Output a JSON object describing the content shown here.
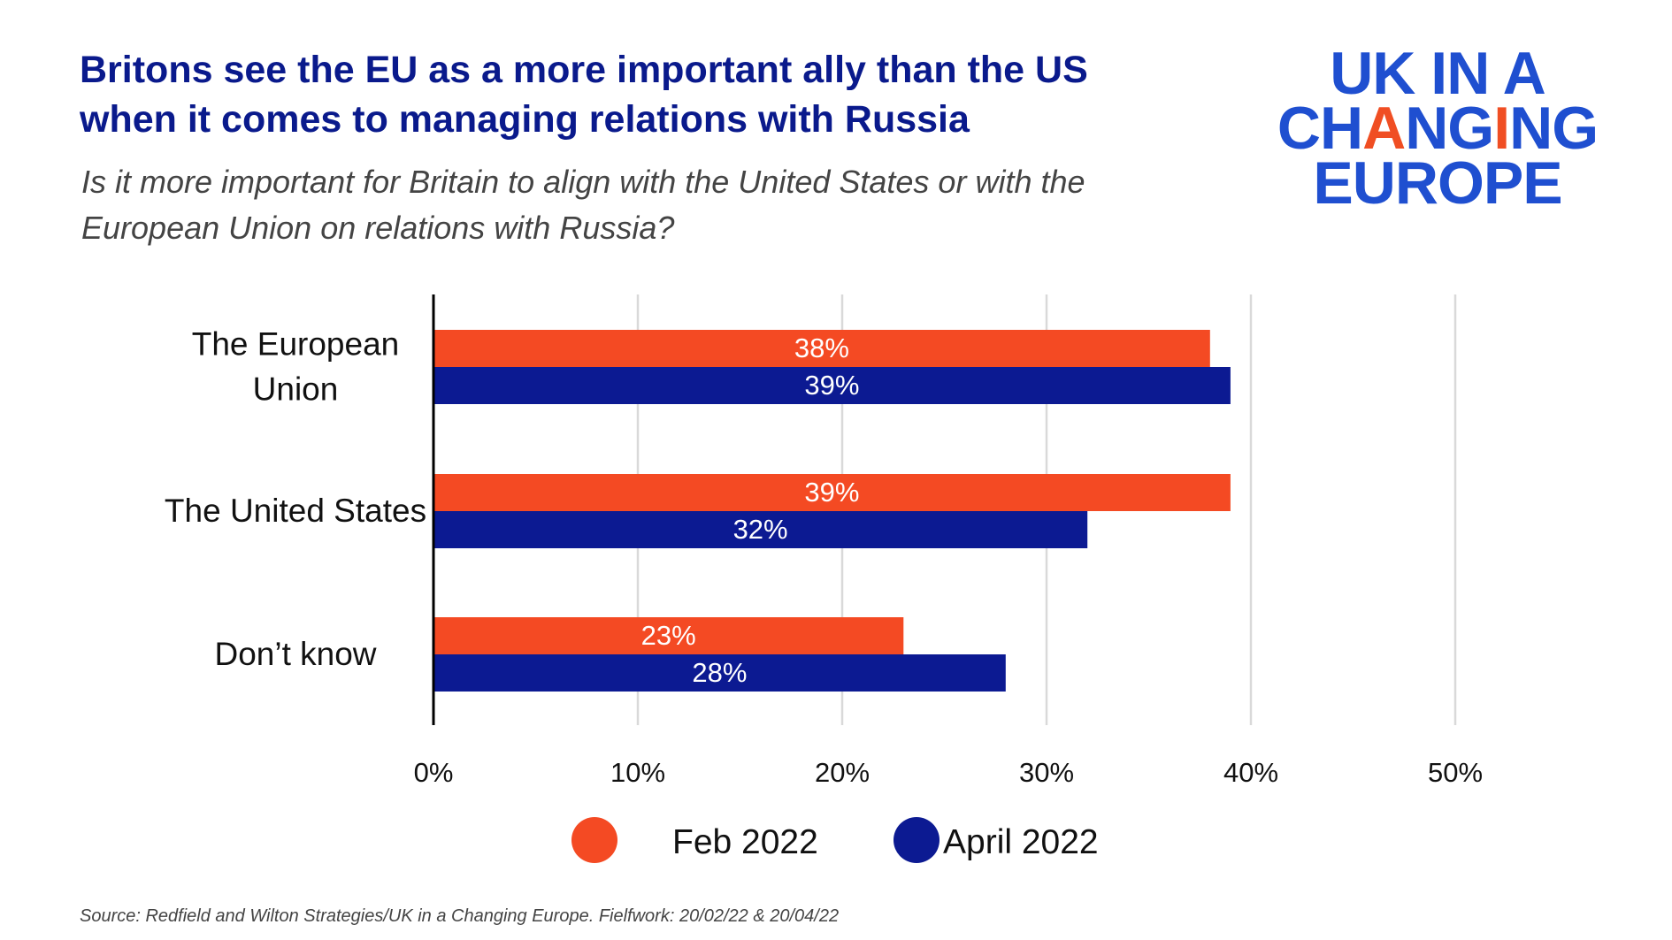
{
  "header": {
    "title": "Britons see the EU as a more important ally than the US\n when it comes to managing relations with Russia",
    "subtitle": "Is it more important for Britain to align with the United States or with the\nEuropean Union on relations with Russia?"
  },
  "logo": {
    "line1": "UK IN A",
    "line2_a": "CH",
    "line2_b": "A",
    "line2_c": "NG",
    "line2_d": "I",
    "line2_e": "NG",
    "line3": "EUROPE"
  },
  "colors": {
    "feb": "#f44a23",
    "april": "#0c1a92",
    "title": "#0a1a8c",
    "grid": "#d9d9d9",
    "axis": "#000000"
  },
  "chart_data": {
    "type": "bar",
    "orientation": "horizontal",
    "title": "Britons see the EU as a more important ally than the US when it comes to managing relations with Russia",
    "categories": [
      [
        "The European",
        "Union"
      ],
      [
        "The United States"
      ],
      [
        "Don’t know"
      ]
    ],
    "series": [
      {
        "name": "Feb 2022",
        "values": [
          38,
          39,
          23
        ],
        "labels": [
          "38%",
          "39%",
          "23%"
        ]
      },
      {
        "name": "April 2022",
        "values": [
          39,
          32,
          28
        ],
        "labels": [
          "39%",
          "32%",
          "28%"
        ]
      }
    ],
    "xlim": [
      0,
      50
    ],
    "ticks": [
      0,
      10,
      20,
      30,
      40,
      50
    ],
    "tick_labels": [
      "0%",
      "10%",
      "20%",
      "30%",
      "40%",
      "50%"
    ],
    "grid": true,
    "legend_position": "bottom"
  },
  "footer": {
    "source": "Source: Redfield and Wilton Strategies/UK in a Changing  Europe. Fielfwork: 20/02/22 & 20/04/22"
  }
}
